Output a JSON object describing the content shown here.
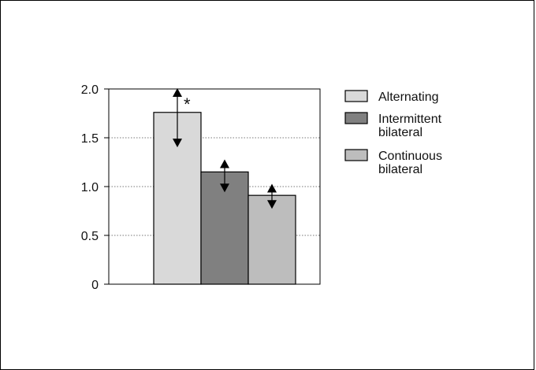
{
  "chart_data": {
    "type": "bar",
    "title": "",
    "xlabel": "",
    "ylabel": "",
    "ylim": [
      0,
      2.0
    ],
    "yticks": [
      "0",
      "0.5",
      "1.0",
      "1.5",
      "2.0"
    ],
    "ytick_values": [
      0,
      0.5,
      1.0,
      1.5,
      2.0
    ],
    "grid": "horizontal dotted",
    "legend_position": "right",
    "significance_marker": "*",
    "series": [
      {
        "name": "Alternating",
        "value": 1.76,
        "err_high": 2.0,
        "err_low": 1.41,
        "color": "#d9d9d9",
        "label_lines": [
          "Alternating"
        ]
      },
      {
        "name": "Intermittent bilateral",
        "value": 1.15,
        "err_high": 1.27,
        "err_low": 0.95,
        "color": "#808080",
        "label_lines": [
          "Intermittent",
          "bilateral"
        ]
      },
      {
        "name": "Continuous bilateral",
        "value": 0.91,
        "err_high": 1.02,
        "err_low": 0.78,
        "color": "#bdbdbd",
        "label_lines": [
          "Continuous",
          "bilateral"
        ]
      }
    ]
  }
}
